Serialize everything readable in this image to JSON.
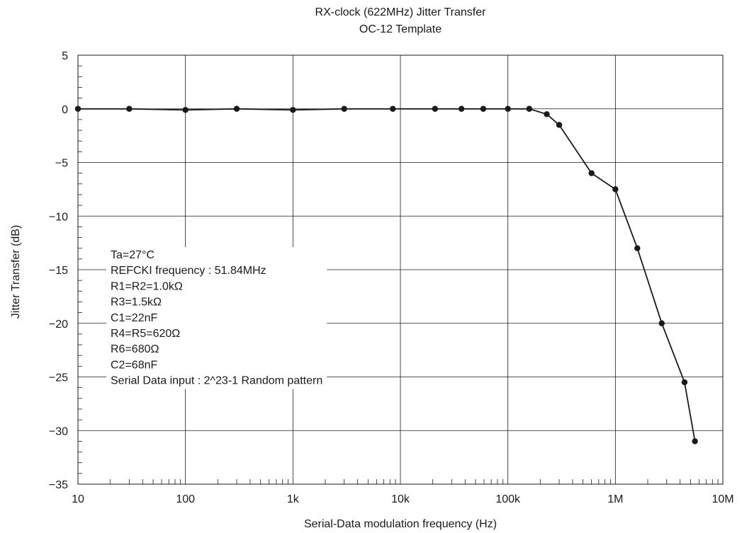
{
  "chart_data": {
    "type": "line",
    "title": "RX-clock (622MHz) Jitter Transfer",
    "subtitle": "OC-12 Template",
    "xlabel": "Serial-Data modulation frequency (Hz)",
    "ylabel": "Jitter Transfer (dB)",
    "x_scale": "log",
    "xlim": [
      10,
      10000000
    ],
    "ylim": [
      -35,
      5
    ],
    "grid": true,
    "legend": "none",
    "x_ticks": [
      {
        "value": 10,
        "label": "10"
      },
      {
        "value": 100,
        "label": "100"
      },
      {
        "value": 1000,
        "label": "1k"
      },
      {
        "value": 10000,
        "label": "10k"
      },
      {
        "value": 100000,
        "label": "100k"
      },
      {
        "value": 1000000,
        "label": "1M"
      },
      {
        "value": 10000000,
        "label": "10M"
      }
    ],
    "y_ticks": [
      {
        "value": 5,
        "label": "5"
      },
      {
        "value": 0,
        "label": "0"
      },
      {
        "value": -5,
        "label": "−5"
      },
      {
        "value": -10,
        "label": "−10"
      },
      {
        "value": -15,
        "label": "−15"
      },
      {
        "value": -20,
        "label": "−20"
      },
      {
        "value": -25,
        "label": "−25"
      },
      {
        "value": -30,
        "label": "−30"
      },
      {
        "value": -35,
        "label": "−35"
      }
    ],
    "series": [
      {
        "color": "#1a1a1a",
        "marker": "circle",
        "x": [
          10,
          30,
          100,
          300,
          1000,
          3000,
          8500,
          21000,
          37000,
          59000,
          100000,
          158000,
          230000,
          300000,
          600000,
          1000000,
          1600000,
          2700000,
          4400000,
          5500000
        ],
        "y": [
          0,
          0,
          -0.1,
          0,
          -0.1,
          0,
          0,
          0,
          0,
          0,
          0,
          0,
          -0.5,
          -1.5,
          -6,
          -7.5,
          -13,
          -20,
          -25.5,
          -31
        ]
      }
    ],
    "annotations": [
      "Ta=27°C",
      "REFCKI frequency : 51.84MHz",
      "R1=R2=1.0kΩ",
      "R3=1.5kΩ",
      "C1=22nF",
      "R4=R5=620Ω",
      "R6=680Ω",
      "C2=68nF",
      "Serial Data input : 2^23-1 Random pattern"
    ]
  }
}
